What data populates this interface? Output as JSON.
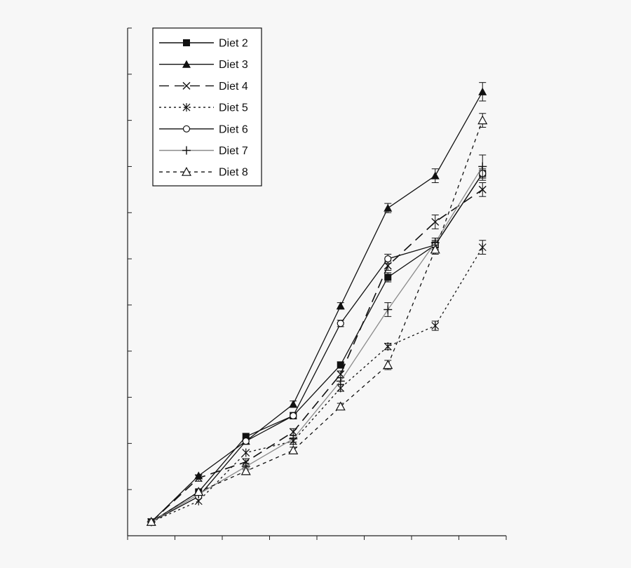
{
  "chart_data": {
    "type": "line",
    "title": "",
    "xlabel": "",
    "ylabel": "",
    "x": [
      1,
      2,
      3,
      4,
      5,
      6,
      7,
      8
    ],
    "xlim": [
      0.5,
      8.5
    ],
    "ylim": [
      0,
      11
    ],
    "grid": false,
    "legend_position": "top-left",
    "colors": {
      "background": "#f7f7f7",
      "axis": "#222222",
      "series": "#111111",
      "series_light": "#8a8a8a"
    },
    "series": [
      {
        "name": "Diet 2",
        "marker": "square-filled",
        "line": "solid",
        "values": [
          0.3,
          0.95,
          2.15,
          2.6,
          3.7,
          5.6,
          6.3,
          7.85
        ],
        "errors": [
          0,
          0,
          0.07,
          0.07,
          0.07,
          0.1,
          0.1,
          0.1
        ]
      },
      {
        "name": "Diet 3",
        "marker": "triangle-filled",
        "line": "solid",
        "values": [
          0.3,
          1.3,
          2.05,
          2.85,
          4.98,
          7.1,
          7.8,
          9.62
        ],
        "errors": [
          0,
          0,
          0.07,
          0.07,
          0.07,
          0.1,
          0.15,
          0.2
        ]
      },
      {
        "name": "Diet 4",
        "marker": "x",
        "line": "long-dash",
        "values": [
          0.3,
          1.25,
          1.6,
          2.25,
          3.5,
          5.85,
          6.8,
          7.5
        ],
        "errors": [
          0,
          0.07,
          0.07,
          0.07,
          0.07,
          0.1,
          0.15,
          0.15
        ]
      },
      {
        "name": "Diet 5",
        "marker": "asterisk",
        "line": "dotted",
        "values": [
          0.3,
          0.75,
          1.8,
          2.05,
          3.2,
          4.1,
          4.55,
          6.25
        ],
        "errors": [
          0,
          0,
          0,
          0.07,
          0.07,
          0.07,
          0.1,
          0.15
        ]
      },
      {
        "name": "Diet 6",
        "marker": "circle-open",
        "line": "solid",
        "values": [
          0.3,
          0.85,
          2.05,
          2.6,
          4.6,
          6.0,
          6.3,
          7.85
        ],
        "errors": [
          0,
          0,
          0,
          0.07,
          0.07,
          0.1,
          0.1,
          0.15
        ]
      },
      {
        "name": "Diet 7",
        "marker": "plus",
        "line": "solid-light",
        "values": [
          0.3,
          0.9,
          1.5,
          2.1,
          3.35,
          4.9,
          6.35,
          8.0
        ],
        "errors": [
          0,
          0,
          0.07,
          0.07,
          0.07,
          0.15,
          0.1,
          0.25
        ]
      },
      {
        "name": "Diet 8",
        "marker": "triangle-open",
        "line": "short-dash",
        "values": [
          0.3,
          0.95,
          1.4,
          1.85,
          2.8,
          3.7,
          6.2,
          9.0
        ],
        "errors": [
          0,
          0,
          0.07,
          0.07,
          0.07,
          0.1,
          0.1,
          0.15
        ]
      }
    ]
  }
}
